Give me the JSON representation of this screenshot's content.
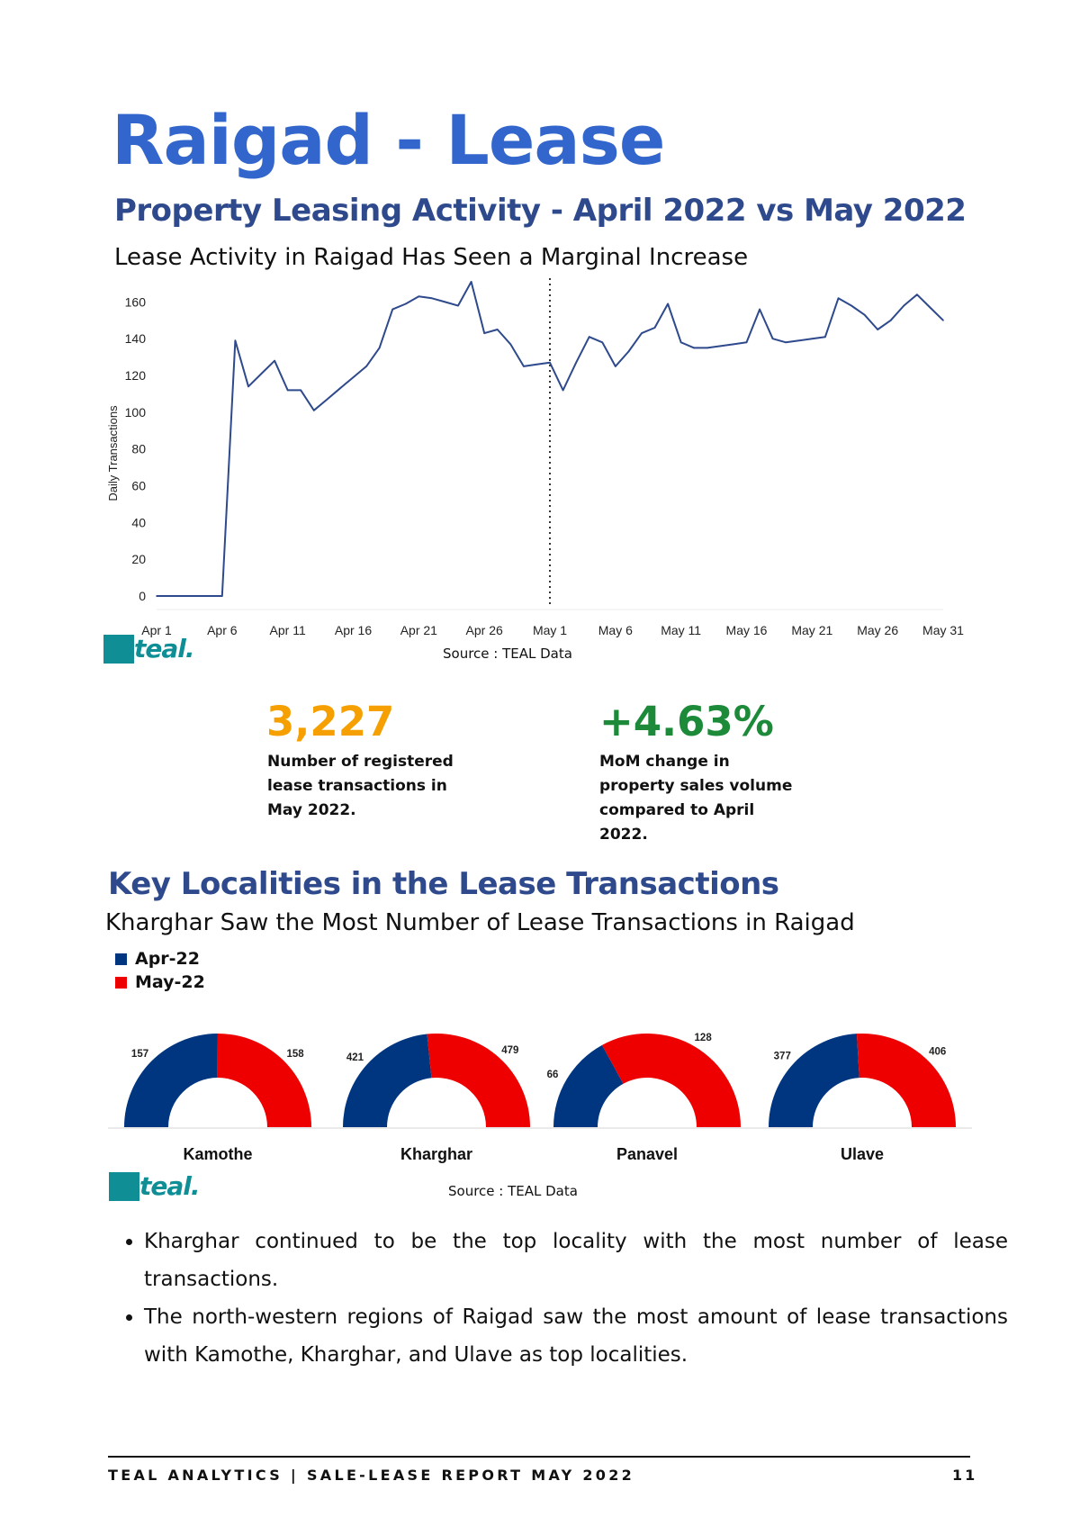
{
  "page": {
    "title": "Raigad - Lease",
    "subtitle": "Property Leasing Activity - April 2022 vs May 2022",
    "tagline": "Lease Activity in Raigad Has Seen a Marginal Increase",
    "source1": "Source : TEAL Data",
    "source2": "Source : TEAL Data",
    "logo_text": "teal.",
    "stat1": {
      "value": "3,227",
      "description": "Number of registered lease transactions in May 2022.",
      "color": "#f5a000"
    },
    "stat2": {
      "value": "+4.63%",
      "description": "MoM change in property sales volume compared to April 2022.",
      "color": "#1d8a3a"
    },
    "section2_title": "Key Localities in the Lease Transactions",
    "section2_tagline": "Kharghar Saw the Most Number of Lease Transactions in Raigad",
    "bullets": [
      "Kharghar continued to be the top locality with the most number of lease transactions.",
      "The north-western regions of Raigad saw the most amount of lease transactions with Kamothe, Kharghar, and Ulave as top localities."
    ],
    "footer": "TEAL ANALYTICS | SALE-LEASE REPORT MAY 2022",
    "page_number": "11"
  },
  "colors": {
    "title": "#3366cc",
    "heading": "#2e4a8c",
    "teal": "#0f8f95",
    "apr": "#003580",
    "may": "#ee0000",
    "line": "#2e4a8c"
  },
  "chart_data": [
    {
      "type": "line",
      "title": "",
      "xlabel": "",
      "ylabel": "Daily Transactions",
      "ylim": [
        0,
        170
      ],
      "yticks": [
        0,
        20,
        40,
        60,
        80,
        100,
        120,
        140,
        160
      ],
      "xtick_labels": [
        "Apr 1",
        "Apr 6",
        "Apr 11",
        "Apr 16",
        "Apr 21",
        "Apr 26",
        "May 1",
        "May 6",
        "May 11",
        "May 16",
        "May 21",
        "May 26",
        "May 31"
      ],
      "xtick_days": [
        1,
        6,
        11,
        16,
        21,
        26,
        31,
        36,
        41,
        46,
        51,
        56,
        61
      ],
      "divider_day": 31,
      "grid": false,
      "series": [
        {
          "x": [
            1,
            2,
            3,
            4,
            5,
            6,
            7,
            8,
            9,
            10,
            11,
            12,
            13,
            14,
            15,
            16,
            17,
            18,
            19,
            20,
            21,
            22,
            23,
            24,
            25,
            26,
            27,
            28,
            29,
            30,
            31,
            32,
            33,
            34,
            35,
            36,
            37,
            38,
            39,
            40,
            41,
            42,
            43,
            44,
            45,
            46,
            47,
            48,
            49,
            50,
            51,
            52,
            53,
            54,
            55,
            56,
            57,
            58,
            59,
            60,
            61
          ],
          "y": [
            0,
            0,
            0,
            0,
            0,
            0,
            139,
            114,
            121,
            128,
            112,
            112,
            101,
            107,
            113,
            119,
            125,
            135,
            156,
            159,
            163,
            162,
            160,
            158,
            171,
            143,
            145,
            137,
            125,
            126,
            127,
            112,
            127,
            141,
            138,
            125,
            133,
            143,
            146,
            159,
            138,
            135,
            135,
            136,
            137,
            138,
            156,
            140,
            138,
            139,
            140,
            141,
            162,
            158,
            153,
            145,
            150,
            158,
            164,
            157,
            150
          ]
        }
      ]
    },
    {
      "type": "pie",
      "subtype": "half-donut",
      "legend": [
        "Apr-22",
        "May-22"
      ],
      "legend_position": "top-left",
      "categories": [
        "Kamothe",
        "Kharghar",
        "Panavel",
        "Ulave"
      ],
      "series": [
        {
          "name": "Apr-22",
          "values": [
            157,
            421,
            66,
            377
          ]
        },
        {
          "name": "May-22",
          "values": [
            158,
            479,
            128,
            406
          ]
        }
      ]
    }
  ]
}
